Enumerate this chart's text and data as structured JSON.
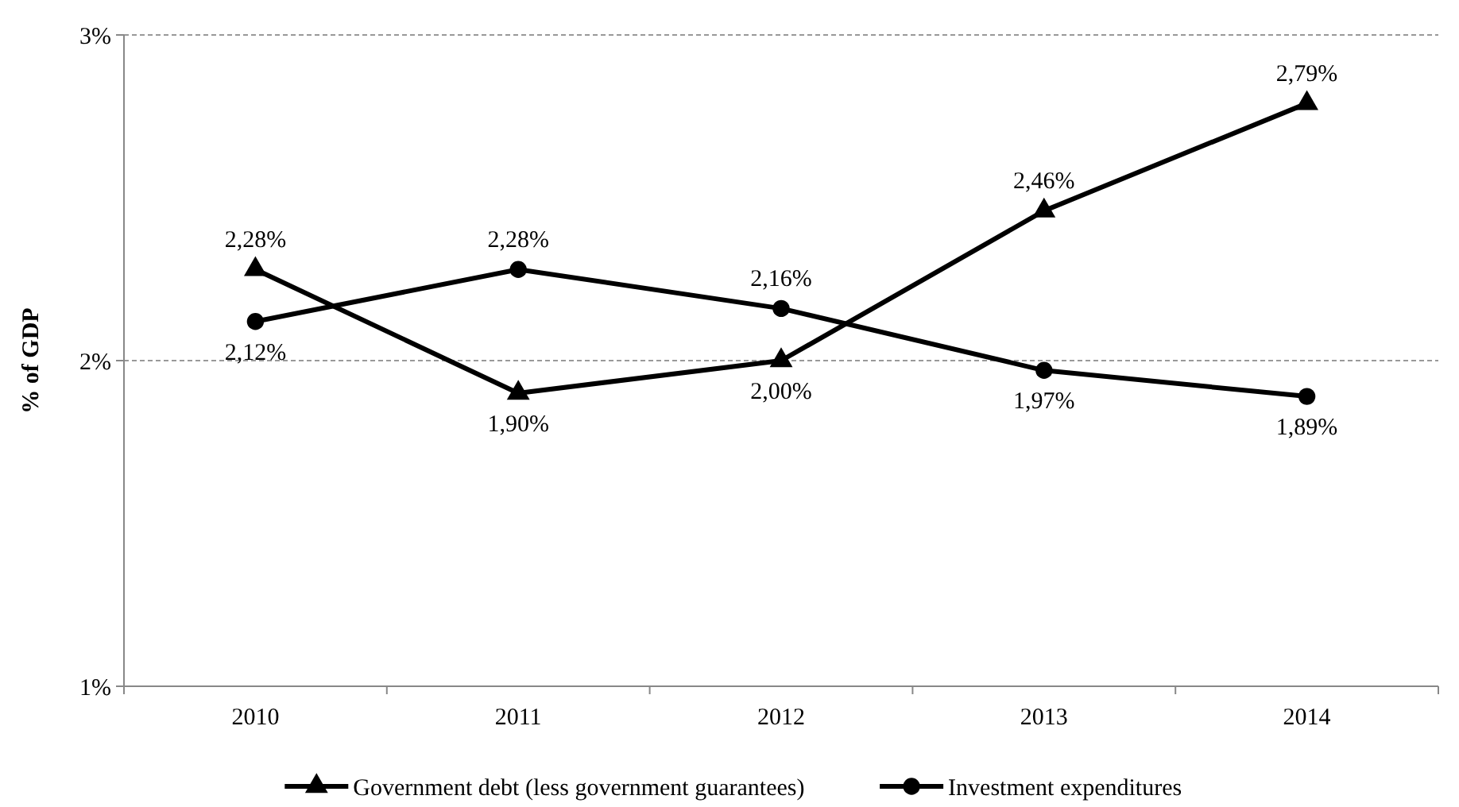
{
  "chart_data": {
    "type": "line",
    "ylabel": "% of GDP",
    "categories": [
      "2010",
      "2011",
      "2012",
      "2013",
      "2014"
    ],
    "series": [
      {
        "name": "Government debt (less government guarantees)",
        "color": "#000000",
        "marker": "triangle",
        "values": [
          2.28,
          1.9,
          2.0,
          2.46,
          2.79
        ],
        "value_labels": [
          "2,28%",
          "1,90%",
          "2,00%",
          "2,46%",
          "2,79%"
        ]
      },
      {
        "name": "Investment expenditures",
        "color": "#000000",
        "marker": "circle",
        "values": [
          2.12,
          2.28,
          2.16,
          1.97,
          1.89
        ],
        "value_labels": [
          "2,12%",
          "2,28%",
          "2,16%",
          "1,97%",
          "1,89%"
        ]
      }
    ],
    "ylim": [
      1,
      3
    ],
    "yticks": [
      {
        "value": 1,
        "label": "1%"
      },
      {
        "value": 2,
        "label": "2%"
      },
      {
        "value": 3,
        "label": "3%"
      }
    ],
    "grid": "y",
    "legend": "bottom",
    "line_style": "solid"
  }
}
